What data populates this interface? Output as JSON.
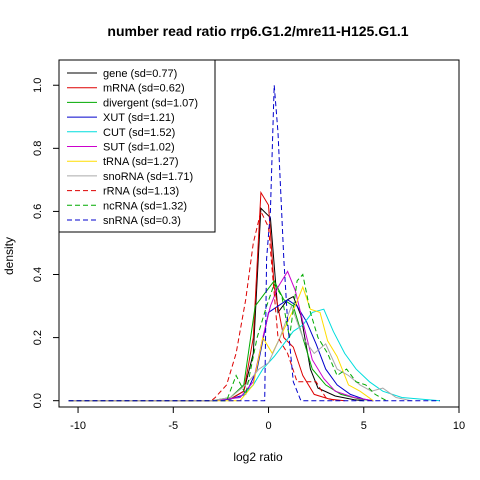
{
  "chart_data": {
    "type": "line",
    "title": "number read ratio rrp6.G1.2/mre11-H125.G1.1",
    "xlabel": "log2 ratio",
    "ylabel": "density",
    "xlim": [
      -11,
      10
    ],
    "ylim": [
      -0.02,
      1.08
    ],
    "xticks": [
      -10,
      -5,
      0,
      5,
      10
    ],
    "yticks": [
      0.0,
      0.2,
      0.4,
      0.6,
      0.8,
      1.0
    ],
    "xtick_labels": [
      "-10",
      "-5",
      "0",
      "5",
      "10"
    ],
    "ytick_labels": [
      "0.0",
      "0.2",
      "0.4",
      "0.6",
      "0.8",
      "1.0"
    ],
    "grid": false,
    "legend_position": "top-left",
    "series": [
      {
        "name": "gene (sd=0.77)",
        "color": "#000000",
        "dash": "solid",
        "points": [
          [
            -10.5,
            0
          ],
          [
            -3,
            0
          ],
          [
            -2,
            0.005
          ],
          [
            -1.3,
            0.03
          ],
          [
            -0.8,
            0.15
          ],
          [
            -0.4,
            0.61
          ],
          [
            0.1,
            0.58
          ],
          [
            0.5,
            0.28
          ],
          [
            1,
            0.32
          ],
          [
            1.3,
            0.33
          ],
          [
            1.7,
            0.27
          ],
          [
            2.2,
            0.1
          ],
          [
            2.6,
            0.04
          ],
          [
            3.5,
            0.015
          ],
          [
            4.5,
            0.003
          ],
          [
            5,
            0
          ]
        ]
      },
      {
        "name": "mRNA (sd=0.62)",
        "color": "#dd0000",
        "dash": "solid",
        "points": [
          [
            -10.5,
            0
          ],
          [
            -3,
            0
          ],
          [
            -2,
            0.005
          ],
          [
            -1.3,
            0.03
          ],
          [
            -0.8,
            0.2
          ],
          [
            -0.4,
            0.66
          ],
          [
            0,
            0.62
          ],
          [
            0.3,
            0.36
          ],
          [
            0.8,
            0.2
          ],
          [
            1.3,
            0.17
          ],
          [
            1.8,
            0.08
          ],
          [
            2.4,
            0.02
          ],
          [
            3.2,
            0.005
          ],
          [
            4,
            0
          ]
        ]
      },
      {
        "name": "divergent (sd=1.07)",
        "color": "#00aa00",
        "dash": "solid",
        "points": [
          [
            -10.5,
            0
          ],
          [
            -3,
            0
          ],
          [
            -2,
            0.01
          ],
          [
            -1.3,
            0.05
          ],
          [
            -0.7,
            0.3
          ],
          [
            -0.2,
            0.34
          ],
          [
            0.3,
            0.38
          ],
          [
            0.8,
            0.32
          ],
          [
            1.3,
            0.3
          ],
          [
            1.8,
            0.2
          ],
          [
            2.3,
            0.1
          ],
          [
            3,
            0.05
          ],
          [
            3.8,
            0.02
          ],
          [
            4.8,
            0.005
          ],
          [
            5.5,
            0
          ]
        ]
      },
      {
        "name": "XUT (sd=1.21)",
        "color": "#0000cc",
        "dash": "solid",
        "points": [
          [
            -10.5,
            0
          ],
          [
            -3,
            0
          ],
          [
            -2,
            0.005
          ],
          [
            -1.2,
            0.02
          ],
          [
            -0.6,
            0.1
          ],
          [
            0,
            0.28
          ],
          [
            0.5,
            0.3
          ],
          [
            1,
            0.32
          ],
          [
            1.5,
            0.3
          ],
          [
            2,
            0.25
          ],
          [
            2.5,
            0.18
          ],
          [
            3,
            0.1
          ],
          [
            3.6,
            0.05
          ],
          [
            4.3,
            0.02
          ],
          [
            5,
            0.005
          ],
          [
            5.5,
            0
          ]
        ]
      },
      {
        "name": "CUT (sd=1.52)",
        "color": "#00dddd",
        "dash": "solid",
        "points": [
          [
            -10.5,
            0
          ],
          [
            -3,
            0
          ],
          [
            -1.5,
            0.01
          ],
          [
            -0.8,
            0.05
          ],
          [
            -0.3,
            0.1
          ],
          [
            0.3,
            0.14
          ],
          [
            0.8,
            0.18
          ],
          [
            1.3,
            0.22
          ],
          [
            1.8,
            0.24
          ],
          [
            2.3,
            0.28
          ],
          [
            2.9,
            0.29
          ],
          [
            3.4,
            0.22
          ],
          [
            4,
            0.15
          ],
          [
            4.6,
            0.1
          ],
          [
            5.3,
            0.06
          ],
          [
            6,
            0.03
          ],
          [
            7,
            0.01
          ],
          [
            8,
            0.005
          ],
          [
            9,
            0
          ]
        ]
      },
      {
        "name": "SUT (sd=1.02)",
        "color": "#cc00cc",
        "dash": "solid",
        "points": [
          [
            -10.5,
            0
          ],
          [
            -3,
            0
          ],
          [
            -1.5,
            0.01
          ],
          [
            -0.8,
            0.06
          ],
          [
            -0.3,
            0.2
          ],
          [
            0.1,
            0.3
          ],
          [
            0.5,
            0.36
          ],
          [
            1,
            0.41
          ],
          [
            1.4,
            0.35
          ],
          [
            1.8,
            0.25
          ],
          [
            2.3,
            0.13
          ],
          [
            2.9,
            0.07
          ],
          [
            3.5,
            0.03
          ],
          [
            4.5,
            0.01
          ],
          [
            5.5,
            0
          ]
        ]
      },
      {
        "name": "tRNA (sd=1.27)",
        "color": "#ffdd00",
        "dash": "solid",
        "points": [
          [
            -10.5,
            0
          ],
          [
            -3,
            0
          ],
          [
            -1.5,
            0
          ],
          [
            -0.8,
            0.05
          ],
          [
            -0.3,
            0.2
          ],
          [
            0.2,
            0.15
          ],
          [
            0.6,
            0.2
          ],
          [
            1,
            0.25
          ],
          [
            1.4,
            0.3
          ],
          [
            1.8,
            0.36
          ],
          [
            2.2,
            0.29
          ],
          [
            2.7,
            0.28
          ],
          [
            3.1,
            0.19
          ],
          [
            3.6,
            0.14
          ],
          [
            4.2,
            0.05
          ],
          [
            4.8,
            0.03
          ],
          [
            5.5,
            0
          ]
        ]
      },
      {
        "name": "snoRNA (sd=1.71)",
        "color": "#aaaaaa",
        "dash": "solid",
        "points": [
          [
            -10.5,
            0
          ],
          [
            -3,
            0
          ],
          [
            -2,
            0.01
          ],
          [
            -1.2,
            0.05
          ],
          [
            -0.5,
            0.1
          ],
          [
            0,
            0.12
          ],
          [
            0.6,
            0.2
          ],
          [
            1.2,
            0.3
          ],
          [
            1.8,
            0.2
          ],
          [
            2.4,
            0.15
          ],
          [
            3,
            0.18
          ],
          [
            3.6,
            0.1
          ],
          [
            4.2,
            0.08
          ],
          [
            4.8,
            0.05
          ],
          [
            5.4,
            0.03
          ],
          [
            6,
            0.04
          ],
          [
            6.7,
            0.01
          ],
          [
            7.5,
            0
          ]
        ]
      },
      {
        "name": "rRNA (sd=1.13)",
        "color": "#dd0000",
        "dash": "dashed",
        "points": [
          [
            -10.5,
            0
          ],
          [
            -3,
            0
          ],
          [
            -2.8,
            0.01
          ],
          [
            -2.2,
            0.05
          ],
          [
            -1.7,
            0.15
          ],
          [
            -1.2,
            0.32
          ],
          [
            -0.8,
            0.5
          ],
          [
            -0.4,
            0.6
          ],
          [
            0,
            0.55
          ],
          [
            0.5,
            0.2
          ],
          [
            1,
            0.15
          ],
          [
            1.5,
            0.06
          ],
          [
            2.5,
            0.06
          ],
          [
            3,
            0.01
          ],
          [
            3.5,
            0
          ]
        ]
      },
      {
        "name": "ncRNA (sd=1.32)",
        "color": "#00aa00",
        "dash": "dashed",
        "points": [
          [
            -10.5,
            0
          ],
          [
            -3,
            0
          ],
          [
            -2.2,
            0
          ],
          [
            -1.7,
            0.08
          ],
          [
            -1.2,
            0.02
          ],
          [
            -0.6,
            0.2
          ],
          [
            -0.1,
            0.3
          ],
          [
            0.3,
            0.37
          ],
          [
            0.7,
            0.33
          ],
          [
            1.1,
            0.2
          ],
          [
            1.5,
            0.38
          ],
          [
            1.8,
            0.4
          ],
          [
            2.2,
            0.28
          ],
          [
            2.6,
            0.2
          ],
          [
            3.1,
            0.15
          ],
          [
            3.6,
            0.08
          ],
          [
            4.1,
            0.1
          ],
          [
            4.6,
            0.06
          ],
          [
            5.1,
            0.05
          ],
          [
            5.6,
            0.02
          ],
          [
            6.2,
            0
          ]
        ]
      },
      {
        "name": "snRNA (sd=0.3)",
        "color": "#0000cc",
        "dash": "dashed",
        "points": [
          [
            -10.5,
            0
          ],
          [
            -3,
            0
          ],
          [
            -0.2,
            0
          ],
          [
            -0.1,
            0.45
          ],
          [
            0.1,
            0.6
          ],
          [
            0.3,
            1.0
          ],
          [
            0.5,
            0.85
          ],
          [
            0.8,
            0.45
          ],
          [
            1.0,
            0.25
          ],
          [
            1.3,
            0.06
          ],
          [
            1.7,
            0
          ],
          [
            9,
            0
          ]
        ]
      }
    ]
  }
}
